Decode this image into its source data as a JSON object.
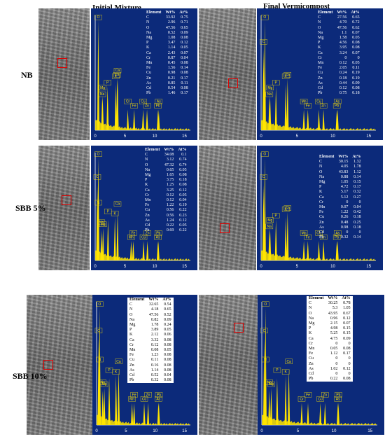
{
  "headers": {
    "initial": "Initial Mixture",
    "final": "Final Vermicompost"
  },
  "colors": {
    "spectrum_bg": "#0c2a7a",
    "peak": "#ffe400",
    "roi_box": "#e00000"
  },
  "table_header": [
    "Element",
    "Wt%",
    "At%"
  ],
  "xaxis_ticks": [
    "0",
    "5",
    "10",
    "15"
  ],
  "rows": [
    {
      "label": "NB",
      "initial": {
        "table": [
          [
            "C",
            "33.92",
            "0.75"
          ],
          [
            "N",
            "2.96",
            "0.71"
          ],
          [
            "O",
            "47.56",
            "0.65"
          ],
          [
            "Na",
            "0.52",
            "0.09"
          ],
          [
            "Mg",
            "1.08",
            "0.08"
          ],
          [
            "P",
            "3.47",
            "0.12"
          ],
          [
            "K",
            "1.14",
            "0.05"
          ],
          [
            "Ca",
            "2.43",
            "0.07"
          ],
          [
            "Cr",
            "0.87",
            "0.04"
          ],
          [
            "Mn",
            "0.45",
            "0.08"
          ],
          [
            "Fe",
            "1.56",
            "0.14"
          ],
          [
            "Cu",
            "0.98",
            "0.08"
          ],
          [
            "Zn",
            "0.21",
            "0.17"
          ],
          [
            "As",
            "0.85",
            "0.11"
          ],
          [
            "Cd",
            "0.54",
            "0.08"
          ],
          [
            "Pb",
            "1.46",
            "0.17"
          ]
        ],
        "peak_labels": [
          "O",
          "Ca",
          "Na",
          "Mg",
          "P",
          "K",
          "Ca",
          "Cr",
          "Fe",
          "Cu",
          "Zn",
          "As",
          "Pb"
        ]
      },
      "final": {
        "table": [
          [
            "C",
            "27.56",
            "0.65"
          ],
          [
            "N",
            "4.70",
            "0.72"
          ],
          [
            "O",
            "47.56",
            "0.62"
          ],
          [
            "Na",
            "1.1",
            "0.07"
          ],
          [
            "Mg",
            "1.58",
            "0.05"
          ],
          [
            "P",
            "4.56",
            "0.08"
          ],
          [
            "K",
            "3.95",
            "0.08"
          ],
          [
            "Ca",
            "3.24",
            "0.07"
          ],
          [
            "Cr",
            "0",
            "0"
          ],
          [
            "Mn",
            "0.12",
            "0.05"
          ],
          [
            "Fe",
            "2.05",
            "0.11"
          ],
          [
            "Cu",
            "0.24",
            "0.19"
          ],
          [
            "Zn",
            "0.18",
            "0.19"
          ],
          [
            "As",
            "0.44",
            "0.09"
          ],
          [
            "Cd",
            "0.12",
            "0.08"
          ],
          [
            "Pb",
            "0.75",
            "0.18"
          ]
        ],
        "peak_labels": [
          "O",
          "C",
          "Na",
          "Mg",
          "P",
          "K",
          "Ca",
          "Mn",
          "Fe",
          "Cu",
          "Zn",
          "As",
          "Pb"
        ]
      }
    },
    {
      "label": "SBB 5%",
      "initial": {
        "table": [
          [
            "C",
            "34.08",
            "0.1"
          ],
          [
            "N",
            "3.12",
            "0.74"
          ],
          [
            "O",
            "47.32",
            "0.74"
          ],
          [
            "Na",
            "0.65",
            "0.05"
          ],
          [
            "Mg",
            "1.65",
            "0.08"
          ],
          [
            "P",
            "3.75",
            "0.18"
          ],
          [
            "K",
            "1.25",
            "0.08"
          ],
          [
            "Ca",
            "3.25",
            "0.12"
          ],
          [
            "Cr",
            "0.12",
            "0.05"
          ],
          [
            "Mn",
            "0.12",
            "0.04"
          ],
          [
            "Fe",
            "1.22",
            "0.19"
          ],
          [
            "Cu",
            "0.56",
            "0.22"
          ],
          [
            "Zn",
            "0.56",
            "0.23"
          ],
          [
            "As",
            "1.24",
            "0.12"
          ],
          [
            "Cd",
            "0.22",
            "0.05"
          ],
          [
            "Pb",
            "0.69",
            "0.22"
          ]
        ],
        "peak_labels": [
          "O",
          "C",
          "N",
          "Na",
          "Mg",
          "P",
          "K",
          "Ca",
          "Mn",
          "Fe",
          "Cu",
          "Zn",
          "As",
          "Pb"
        ]
      },
      "final": {
        "table": [
          [
            "C",
            "30.15",
            "1.32"
          ],
          [
            "N",
            "4.05",
            "1.78"
          ],
          [
            "O",
            "43.83",
            "1.12"
          ],
          [
            "Na",
            "0.88",
            "0.14"
          ],
          [
            "Mg",
            "1.05",
            "0.15"
          ],
          [
            "P",
            "4.72",
            "0.17"
          ],
          [
            "K",
            "5.17",
            "0.32"
          ],
          [
            "Ca",
            "5.12",
            "0.27"
          ],
          [
            "Cr",
            "0",
            "0"
          ],
          [
            "Mn",
            "0.07",
            "0.04"
          ],
          [
            "Fe",
            "1.22",
            "0.42"
          ],
          [
            "Cu",
            "0.26",
            "0.18"
          ],
          [
            "Zn",
            "0.48",
            "0.25"
          ],
          [
            "As",
            "0.98",
            "0.18"
          ],
          [
            "Cd",
            "0",
            "0"
          ],
          [
            "Pb",
            "0.32",
            "0.14"
          ]
        ],
        "peak_labels": [
          "O",
          "C",
          "Na",
          "Mg",
          "P",
          "K",
          "Ca",
          "Mn",
          "Fe",
          "Cu",
          "Zn",
          "As",
          "Pb"
        ]
      }
    },
    {
      "label": "SBB 10%",
      "initial": {
        "table": [
          [
            "C",
            "32.65",
            "0.54"
          ],
          [
            "N",
            "4.18",
            "0.65"
          ],
          [
            "O",
            "47.56",
            "0.52"
          ],
          [
            "Na",
            "0.82",
            "0.09"
          ],
          [
            "Mg",
            "1.78",
            "0.24"
          ],
          [
            "P",
            "3.89",
            "0.05"
          ],
          [
            "K",
            "2.12",
            "0.06"
          ],
          [
            "Ca",
            "3.32",
            "0.08"
          ],
          [
            "Cr",
            "0.12",
            "0.08"
          ],
          [
            "Mn",
            "0.08",
            "0.05"
          ],
          [
            "Fe",
            "1.23",
            "0.08"
          ],
          [
            "Cu",
            "0.11",
            "0.08"
          ],
          [
            "Zn",
            "0.16",
            "0.08"
          ],
          [
            "As",
            "1.14",
            "0.08"
          ],
          [
            "Cd",
            "0.52",
            "0.04"
          ],
          [
            "Pb",
            "0.32",
            "0.08"
          ]
        ],
        "peak_labels": [
          "O",
          "C",
          "N",
          "Na",
          "Mg",
          "P",
          "K",
          "Ca",
          "Mn",
          "Fe",
          "Cu",
          "Zn",
          "As",
          "Pb"
        ]
      },
      "final": {
        "table": [
          [
            "C",
            "30.25",
            "0.78"
          ],
          [
            "N",
            "5.3",
            "1.05"
          ],
          [
            "O",
            "43.95",
            "0.67"
          ],
          [
            "Na",
            "0.96",
            "0.12"
          ],
          [
            "Mg",
            "2.15",
            "0.07"
          ],
          [
            "P",
            "4.98",
            "0.15"
          ],
          [
            "K",
            "5.25",
            "0.15"
          ],
          [
            "Ca",
            "4.75",
            "0.09"
          ],
          [
            "Cr",
            "0",
            "0"
          ],
          [
            "Mn",
            "0.05",
            "0.08"
          ],
          [
            "Fe",
            "1.12",
            "0.17"
          ],
          [
            "Cu",
            "0",
            "0"
          ],
          [
            "Zn",
            "0",
            "0"
          ],
          [
            "As",
            "1.02",
            "0.12"
          ],
          [
            "Cd",
            "0",
            "0"
          ],
          [
            "Pb",
            "0.22",
            "0.08"
          ]
        ],
        "peak_labels": [
          "O",
          "C",
          "N",
          "Na",
          "Mg",
          "P",
          "K",
          "Ca",
          "Cr",
          "Fe",
          "Cu",
          "Zn",
          "As",
          "Pb"
        ]
      }
    }
  ]
}
